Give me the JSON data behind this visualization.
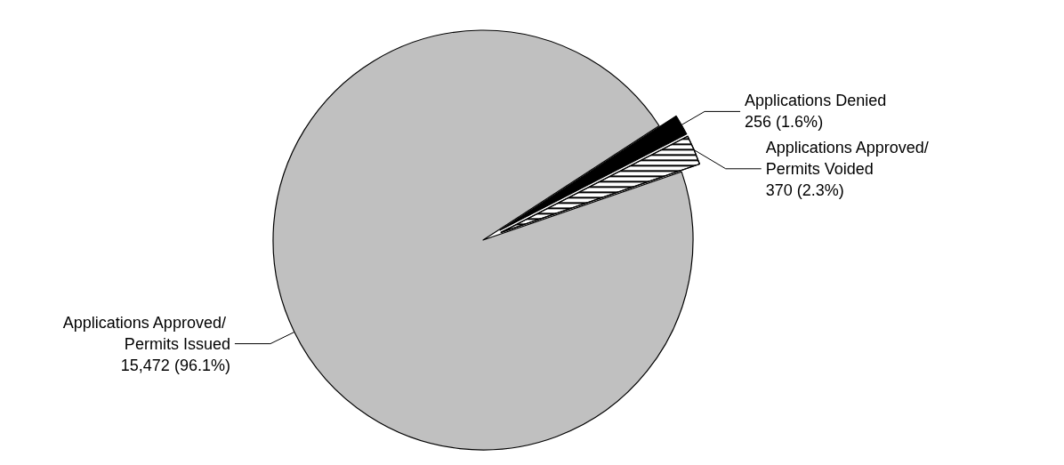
{
  "chart_data": {
    "type": "pie",
    "categories": [
      "Applications Approved/ Permits Issued",
      "Applications Denied",
      "Applications Approved/ Permits Voided"
    ],
    "values": [
      15472,
      256,
      370
    ],
    "colors": [
      "#c0c0c0",
      "#000000",
      "#ffffff"
    ],
    "value_labels": [
      "15,472 (96.1%)",
      "256 (1.6%)",
      "370 (2.3%)"
    ],
    "legend": false
  }
}
